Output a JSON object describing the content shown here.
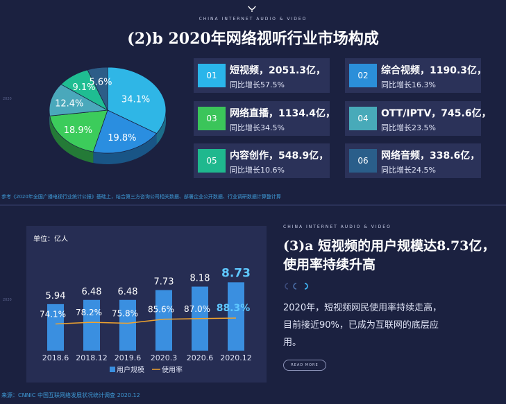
{
  "header": {
    "brand": "CHINA INTERNET AUDIO & VIDEO",
    "title": "(2)b 2020年网络视听行业市场构成"
  },
  "side_year": "2020",
  "top_source": "参考《2020年全国广播电视行业统计公报》基础上，结合第三方咨询公司相关数据、部署企业公开数据、行业调研数据计算整计算",
  "segments": [
    {
      "num": "01",
      "name": "短视频，2051.3亿，",
      "growth": "同比增长57.5%",
      "color": "#2ab5ea"
    },
    {
      "num": "02",
      "name": "综合视频，1190.3亿，",
      "growth": "同比增长16.3%",
      "color": "#2b8fd9"
    },
    {
      "num": "03",
      "name": "网络直播，1134.4亿，",
      "growth": "同比增长34.5%",
      "color": "#3bc55a"
    },
    {
      "num": "04",
      "name": "OTT/IPTV，745.6亿，",
      "growth": "同比增长23.5%",
      "color": "#48aab9"
    },
    {
      "num": "05",
      "name": "内容创作，548.9亿，",
      "growth": "同比增长10.6%",
      "color": "#1fb88e"
    },
    {
      "num": "06",
      "name": "网络音频，338.6亿，",
      "growth": "同比增长24.5%",
      "color": "#2a5e8a"
    }
  ],
  "mid": {
    "brand": "CHINA INTERNET AUDIO & VIDEO",
    "title": "(3)a 短视频的用户规模达8.73亿，使用率持续升高",
    "description": "2020年，短视频网民使用率持续走高，目前接近90%，已成为互联网的底层应用。",
    "read_more": "READ MORE"
  },
  "bottom_source": "来源：CNNIC 中国互联网络发展状况统计调查 2020.12",
  "chart_data": [
    {
      "type": "pie",
      "labels": [
        "短视频",
        "综合视频",
        "网络直播",
        "OTT/IPTV",
        "内容创作",
        "网络音频"
      ],
      "values": [
        34.1,
        19.8,
        18.9,
        12.4,
        9.1,
        5.6
      ],
      "value_labels": [
        "34.1%",
        "19.8%",
        "18.9%",
        "12.4%",
        "9.1%",
        "5.6%"
      ],
      "colors": [
        "#2fb6e6",
        "#2a8ee0",
        "#3ccc5b",
        "#4aa8bb",
        "#1fbd92",
        "#2c5d88"
      ]
    },
    {
      "type": "bar",
      "unit_label": "单位：亿人",
      "categories": [
        "2018.6",
        "2018.12",
        "2019.6",
        "2020.3",
        "2020.6",
        "2020.12"
      ],
      "series": [
        {
          "name": "用户规模",
          "type": "bar",
          "values": [
            5.94,
            6.48,
            6.48,
            7.73,
            8.18,
            8.73
          ],
          "labels": [
            "5.94",
            "6.48",
            "6.48",
            "7.73",
            "8.18",
            "8.73"
          ],
          "color": "#3a8fe0"
        },
        {
          "name": "使用率",
          "type": "line",
          "values": [
            74.1,
            78.2,
            75.8,
            85.6,
            87.0,
            88.3
          ],
          "labels": [
            "74.1%",
            "78.2%",
            "75.8%",
            "85.6%",
            "87.0%",
            "88.3%"
          ],
          "color": "#f0a32e"
        }
      ],
      "ylim": [
        0,
        10
      ],
      "y2lim": [
        0,
        100
      ],
      "legend_position": "bottom"
    }
  ]
}
